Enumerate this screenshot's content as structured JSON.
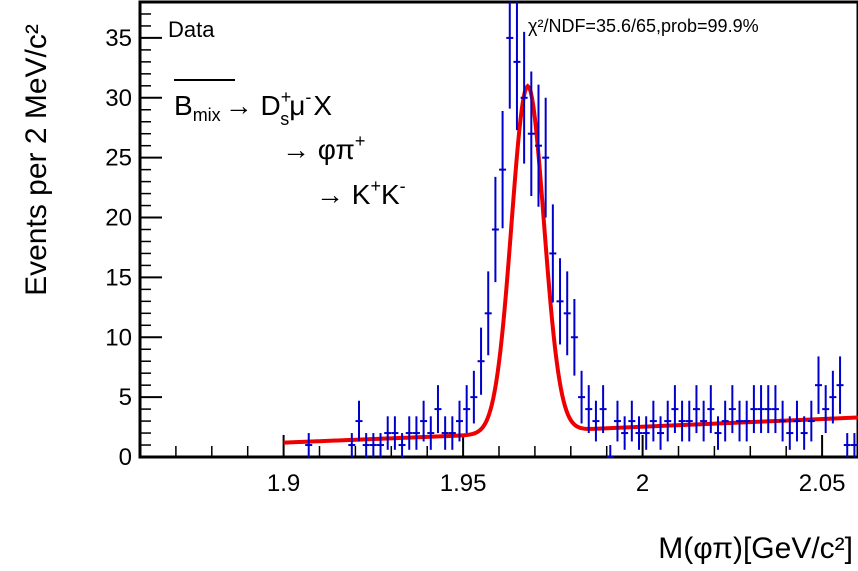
{
  "chart_data": {
    "type": "scatter",
    "title": "",
    "xlabel": "M(φπ)[GeV/c²]",
    "ylabel": "Events per 2 MeV/c²",
    "xlim": [
      1.86,
      2.06
    ],
    "ylim": [
      0,
      38
    ],
    "x_ticks": [
      1.9,
      1.95,
      2.0,
      2.05
    ],
    "x_tick_labels": [
      "1.9",
      "1.95",
      "2",
      "2.05"
    ],
    "y_ticks": [
      0,
      5,
      10,
      15,
      20,
      25,
      30,
      35
    ],
    "y_tick_labels": [
      "0",
      "5",
      "10",
      "15",
      "20",
      "25",
      "30",
      "35"
    ],
    "legend_label": "Data",
    "fit_stats": "χ²/NDF=35.6/65,prob=99.9%",
    "decay": {
      "line1_prefix": "B",
      "line1_sub": "mix",
      "line1_rest": "→ D",
      "line1_ds_sup": "+",
      "line1_ds_sub": "s",
      "line1_tail": "μ",
      "line1_mu_sup": "-",
      "line1_x": "X",
      "line2": "→ φπ",
      "line2_sup": "+",
      "line3_a": "→ K",
      "line3_sup1": "+",
      "line3_b": "K",
      "line3_sup2": "-"
    },
    "colors": {
      "data": "#0000cc",
      "fit": "#ee0000",
      "axis": "#000000"
    },
    "points": {
      "x": [
        1.907,
        1.919,
        1.921,
        1.923,
        1.925,
        1.927,
        1.929,
        1.931,
        1.933,
        1.935,
        1.937,
        1.939,
        1.941,
        1.943,
        1.945,
        1.947,
        1.949,
        1.951,
        1.953,
        1.955,
        1.957,
        1.959,
        1.961,
        1.963,
        1.965,
        1.967,
        1.969,
        1.971,
        1.973,
        1.975,
        1.977,
        1.979,
        1.981,
        1.983,
        1.985,
        1.987,
        1.989,
        1.991,
        1.993,
        1.995,
        1.997,
        1.999,
        2.001,
        2.003,
        2.005,
        2.007,
        2.009,
        2.011,
        2.013,
        2.015,
        2.017,
        2.019,
        2.021,
        2.023,
        2.025,
        2.027,
        2.029,
        2.031,
        2.033,
        2.035,
        2.037,
        2.039,
        2.041,
        2.043,
        2.045,
        2.047,
        2.049,
        2.051,
        2.053,
        2.055,
        2.057,
        2.059
      ],
      "y": [
        1,
        1,
        3,
        1,
        1,
        1,
        2,
        2,
        1,
        2,
        2,
        3,
        2,
        4,
        2,
        2,
        3,
        4,
        5,
        8,
        12,
        19,
        24,
        35,
        33,
        30,
        27,
        26,
        25,
        17,
        13,
        12,
        10,
        5,
        4,
        3,
        4,
        0,
        3,
        2,
        3,
        2,
        2,
        3,
        2,
        3,
        4,
        3,
        3,
        4,
        3,
        4,
        2,
        3,
        4,
        3,
        3,
        4,
        4,
        4,
        4,
        3,
        2,
        3,
        2,
        3,
        6,
        4,
        5,
        6,
        1,
        1
      ],
      "err": [
        1.0,
        1.0,
        1.7,
        1.0,
        1.0,
        1.0,
        1.4,
        1.4,
        1.0,
        1.4,
        1.4,
        1.7,
        1.4,
        2.0,
        1.4,
        1.4,
        1.7,
        2.0,
        2.2,
        2.8,
        3.5,
        4.4,
        4.9,
        5.9,
        5.7,
        5.5,
        5.2,
        5.1,
        5.0,
        4.1,
        3.6,
        3.5,
        3.2,
        2.2,
        2.0,
        1.7,
        2.0,
        1.0,
        1.7,
        1.4,
        1.7,
        1.4,
        1.4,
        1.7,
        1.4,
        1.7,
        2.0,
        1.7,
        1.7,
        2.0,
        1.7,
        2.0,
        1.4,
        1.7,
        2.0,
        1.7,
        1.7,
        2.0,
        2.0,
        2.0,
        2.0,
        1.7,
        1.4,
        1.7,
        1.4,
        1.7,
        2.4,
        2.0,
        2.2,
        2.4,
        1.0,
        1.0
      ]
    },
    "fit": {
      "x_start": 1.9,
      "x_end": 2.06,
      "peak_mean": 1.968,
      "peak_sigma": 0.0045,
      "peak_amplitude": 28.9,
      "background": [
        [
          1.9,
          1.2
        ],
        [
          1.95,
          1.8
        ],
        [
          1.99,
          2.4
        ],
        [
          2.06,
          3.3
        ]
      ]
    }
  }
}
